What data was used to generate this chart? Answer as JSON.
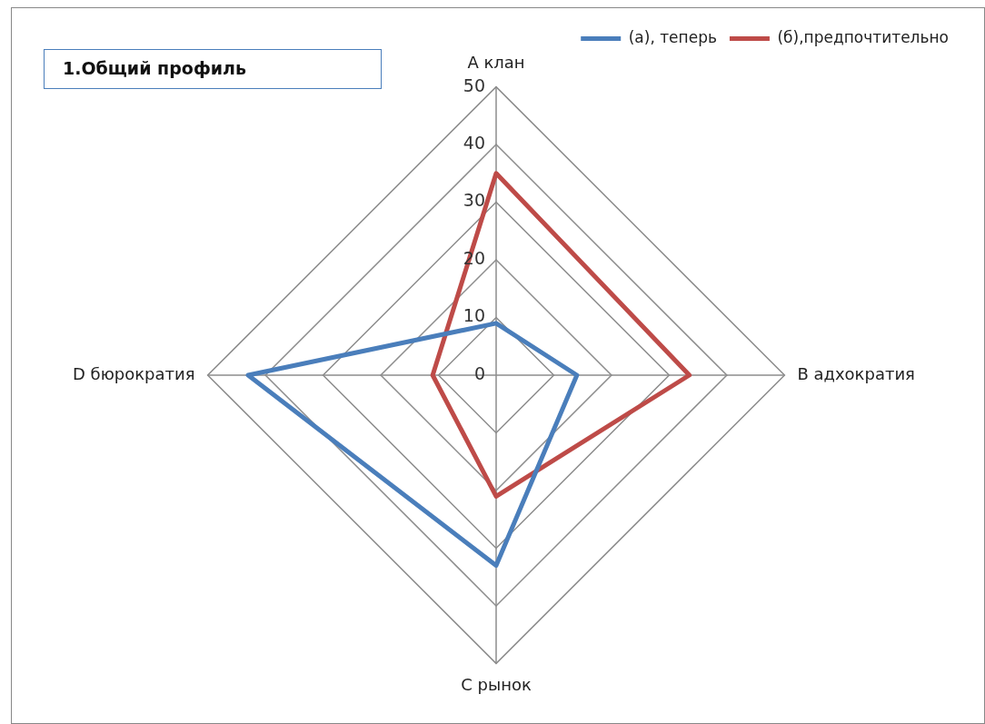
{
  "chart_data": {
    "type": "radar",
    "title": "1.Общий профиль",
    "categories": [
      "А клан",
      "В адхократия",
      "С рынок",
      "D бюрократия"
    ],
    "series": [
      {
        "name": "(а), теперь",
        "color": "#4a7ebb",
        "values": [
          9,
          14,
          33,
          43
        ]
      },
      {
        "name": "(б),предпочтительно",
        "color": "#be4b48",
        "values": [
          35,
          33.5,
          21,
          11
        ]
      }
    ],
    "ylim": [
      0,
      50
    ],
    "yticks": [
      0,
      10,
      20,
      30,
      40,
      50
    ],
    "grid": true,
    "legend": "top right",
    "marker": "none",
    "line_style": "solid"
  }
}
